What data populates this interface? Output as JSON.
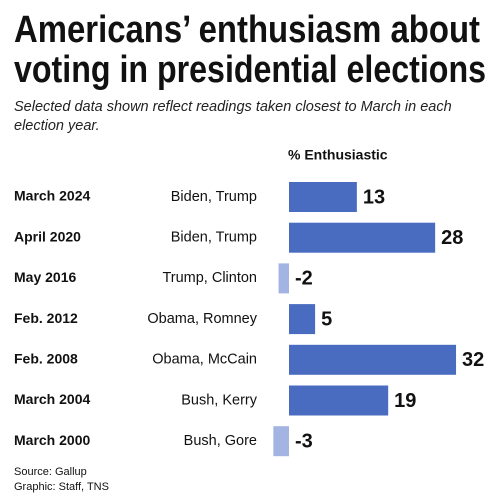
{
  "chart_data": {
    "type": "bar",
    "orientation": "horizontal",
    "title": [
      "Americans’ enthusiasm about",
      "voting in presidential elections"
    ],
    "subtitle": "Selected data shown reflect readings taken closest to March in each election year.",
    "value_header": "% Enthusiastic",
    "categories": [
      "March 2024",
      "April 2020",
      "May 2016",
      "Feb. 2012",
      "Feb. 2008",
      "March 2004",
      "March 2000"
    ],
    "candidates": [
      "Biden, Trump",
      "Biden, Trump",
      "Trump, Clinton",
      "Obama, Romney",
      "Obama, McCain",
      "Bush, Kerry",
      "Bush, Gore"
    ],
    "values": [
      13,
      28,
      -2,
      5,
      32,
      19,
      -3
    ],
    "color": "#4a6cc0",
    "negative_color": "#a3b4e2",
    "source": [
      "Source: Gallup",
      "Graphic: Staff, TNS"
    ]
  }
}
